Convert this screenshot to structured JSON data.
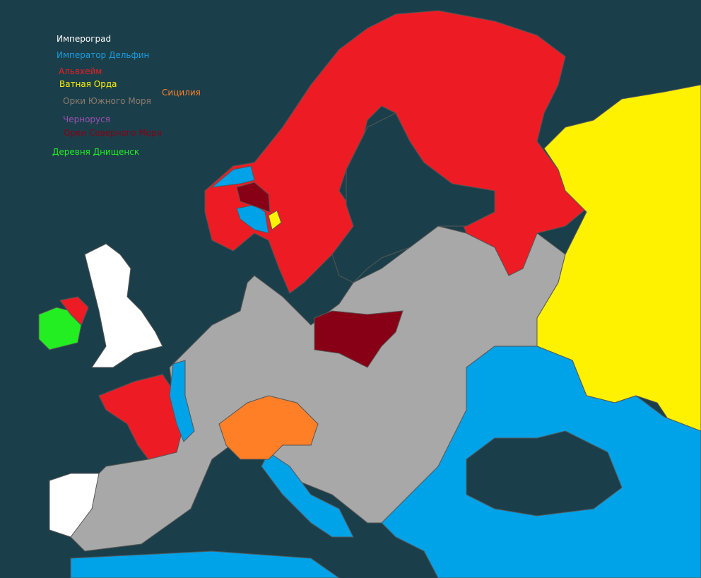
{
  "legend": [
    {
      "label": "Имперограd",
      "color": "#ffffff"
    },
    {
      "label": "Император Дельфин",
      "color": "#1a9be0"
    },
    {
      "label": "Альвхейм",
      "color": "#ed1c24"
    },
    {
      "label": "Ватная Орда",
      "color": "#fff200"
    },
    {
      "label": "Сицилия",
      "color": "#ff7f27"
    },
    {
      "label": "Орки Южного Моря",
      "color": "#8c7a6e"
    },
    {
      "label": "Черноруся",
      "color": "#9b4fb5"
    },
    {
      "label": "Орки Северного Моря",
      "color": "#880015"
    },
    {
      "label": "Деревня Днищенск",
      "color": "#22ee22"
    }
  ],
  "colors": {
    "sea": "#1b3f4a",
    "neutral": "#a8a8a8"
  }
}
